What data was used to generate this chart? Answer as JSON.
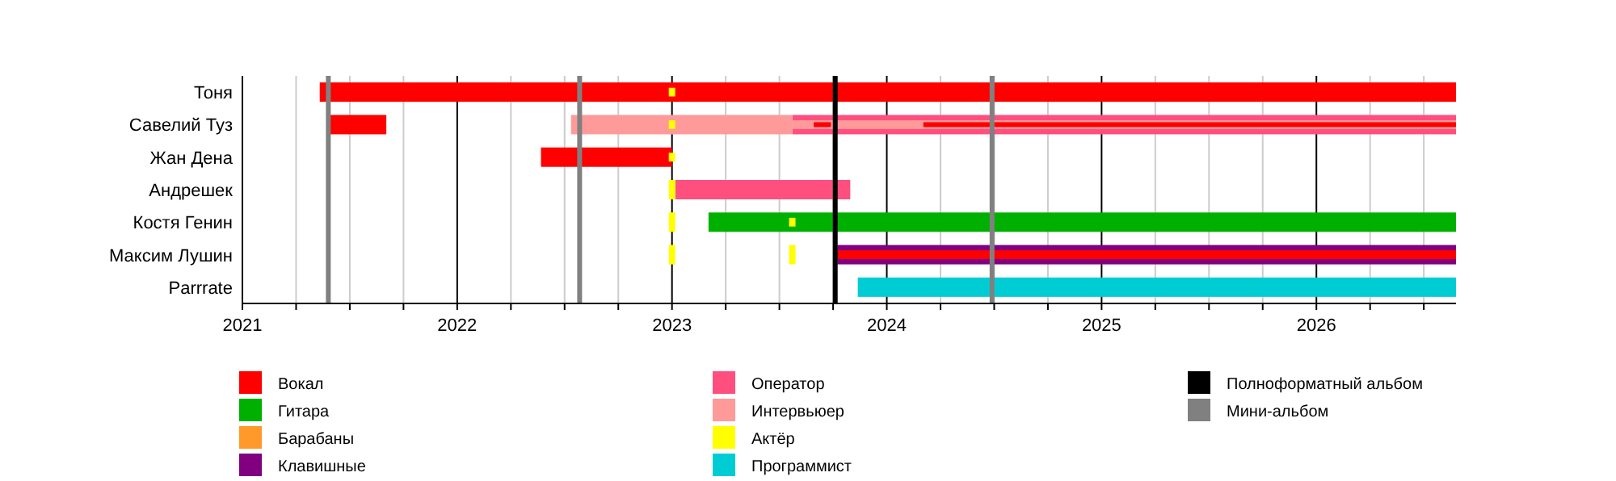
{
  "chart_data": {
    "type": "bar",
    "orientation": "horizontal",
    "categories": [
      "Тоня",
      "Савелий Туз",
      "Жан Дена",
      "Андрешек",
      "Костя Генин",
      "Максим Лушин",
      "Parrrate"
    ],
    "series": [
      {
        "name": "Вокал",
        "color": "#ff0000",
        "base": [
          2021.36,
          2021.41,
          2022.39,
          null,
          null,
          2023.77,
          null
        ],
        "values": [
          5.29,
          0.26,
          0.61,
          null,
          null,
          2.88,
          null
        ]
      },
      {
        "name": "Гитара",
        "color": "#00b000",
        "base": [
          null,
          null,
          null,
          null,
          2023.17,
          null,
          null
        ],
        "values": [
          null,
          null,
          null,
          null,
          3.48,
          null,
          null
        ]
      },
      {
        "name": "Барабаны",
        "color": "#ff9a2a",
        "base": [
          null,
          null,
          null,
          null,
          null,
          null,
          null
        ],
        "values": [
          null,
          null,
          null,
          null,
          null,
          null,
          null
        ]
      },
      {
        "name": "Клавишные",
        "color": "#800080",
        "base": [
          null,
          null,
          null,
          null,
          null,
          2023.77,
          null
        ],
        "values": [
          null,
          null,
          null,
          null,
          null,
          2.88,
          null
        ]
      },
      {
        "name": "Оператор",
        "color": "#ff4f7f",
        "base": [
          null,
          2023.56,
          null,
          2023.015,
          null,
          null,
          null
        ],
        "values": [
          null,
          3.09,
          null,
          0.815,
          null,
          null,
          null
        ]
      },
      {
        "name": "Интервьюер",
        "color": "#ff9a9a",
        "base": [
          null,
          2022.53,
          null,
          null,
          null,
          null,
          null
        ],
        "values": [
          null,
          1.03,
          null,
          null,
          null,
          null,
          null
        ]
      },
      {
        "name": "Актёр",
        "color": "#ffff00",
        "base": [
          2022.985,
          2022.985,
          2022.985,
          2022.985,
          2022.985,
          2022.985,
          null
        ],
        "values": [
          0.03,
          0.03,
          0.03,
          0.03,
          0.03,
          0.03,
          null
        ]
      },
      {
        "name": "Программист",
        "color": "#00ccd4",
        "base": [
          null,
          null,
          null,
          null,
          null,
          null,
          2023.865
        ],
        "values": [
          null,
          null,
          null,
          null,
          null,
          null,
          2.785
        ]
      },
      {
        "color": "#ff9a9a",
        "base": [
          null,
          2023.56,
          null,
          null,
          null,
          null,
          null
        ],
        "values": [
          null,
          3.09,
          null,
          null,
          null,
          null,
          null
        ]
      },
      {
        "color": "#ff0000",
        "base": [
          null,
          2023.66,
          null,
          null,
          null,
          null,
          null
        ],
        "values": [
          null,
          0.08,
          null,
          null,
          null,
          null,
          null
        ]
      },
      {
        "color": "#ff0000",
        "base": [
          null,
          2024.17,
          null,
          null,
          null,
          null,
          null
        ],
        "values": [
          null,
          2.48,
          null,
          null,
          null,
          null,
          null
        ]
      },
      {
        "color": "#ffff00",
        "base": [
          null,
          null,
          null,
          null,
          2023.545,
          2023.545,
          null
        ],
        "values": [
          null,
          null,
          null,
          null,
          0.03,
          0.03,
          null
        ]
      }
    ],
    "xlim": [
      2021,
      2026.65
    ],
    "xticks": [
      2021,
      {
        "value": 2021.25,
        "label": null
      },
      {
        "value": 2021.5,
        "label": null
      },
      {
        "value": 2021.75,
        "label": null
      },
      2022,
      {
        "value": 2022.25,
        "label": null
      },
      {
        "value": 2022.5,
        "label": null
      },
      {
        "value": 2022.75,
        "label": null
      },
      2023,
      {
        "value": 2023.25,
        "label": null
      },
      {
        "value": 2023.5,
        "label": null
      },
      {
        "value": 2023.75,
        "label": null
      },
      2024,
      {
        "value": 2024.25,
        "label": null
      },
      {
        "value": 2024.5,
        "label": null
      },
      {
        "value": 2024.75,
        "label": null
      },
      2025,
      {
        "value": 2025.25,
        "label": null
      },
      {
        "value": 2025.5,
        "label": null
      },
      {
        "value": 2025.75,
        "label": null
      },
      2026,
      {
        "value": 2026.25,
        "label": null
      },
      {
        "value": 2026.5,
        "label": null
      }
    ],
    "grid": "x",
    "legend": "bottom",
    "ref_lines": [
      {
        "axis": "x",
        "value": 2023.76,
        "label": "Полноформатный альбом",
        "color": "#000000"
      },
      {
        "axis": "x",
        "value": 2021.4,
        "label": "Мини-альбом",
        "color": "#808080"
      },
      {
        "axis": "x",
        "value": 2022.57,
        "color": "#808080"
      },
      {
        "axis": "x",
        "value": 2024.49,
        "color": "#808080"
      }
    ]
  }
}
